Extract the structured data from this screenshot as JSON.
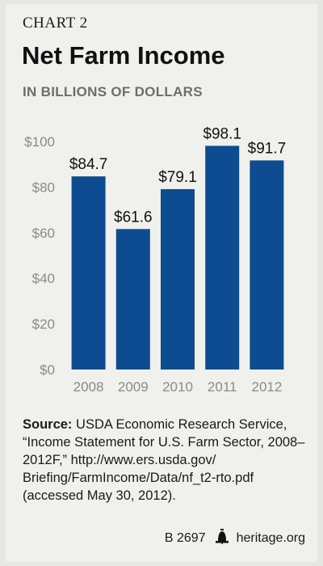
{
  "header": {
    "chart_number": "CHART 2",
    "title": "Net Farm Income",
    "subtitle": "IN BILLIONS OF DOLLARS"
  },
  "chart_data": {
    "type": "bar",
    "categories": [
      "2008",
      "2009",
      "2010",
      "2011",
      "2012"
    ],
    "values": [
      84.7,
      61.6,
      79.1,
      98.1,
      91.7
    ],
    "data_labels": [
      "$84.7",
      "$61.6",
      "$79.1",
      "$98.1",
      "$91.7"
    ],
    "y_ticks": [
      0,
      20,
      40,
      60,
      80,
      100
    ],
    "y_tick_labels": [
      "$0",
      "$20",
      "$40",
      "$60",
      "$80",
      "$100"
    ],
    "ylim": [
      0,
      100
    ],
    "grid": false,
    "bar_color": "#0e4c92"
  },
  "source": {
    "label": "Source:",
    "text": "USDA Economic Research Service, “Income Statement for U.S. Farm Sector, 2008–2012F,” http://www.ers.usda.gov/ Briefing/FarmIncome/Data/nf_t2-rto.pdf (accessed May 30, 2012)."
  },
  "footer": {
    "code": "B 2697",
    "icon": "liberty-bell-icon",
    "site": "heritage.org"
  }
}
